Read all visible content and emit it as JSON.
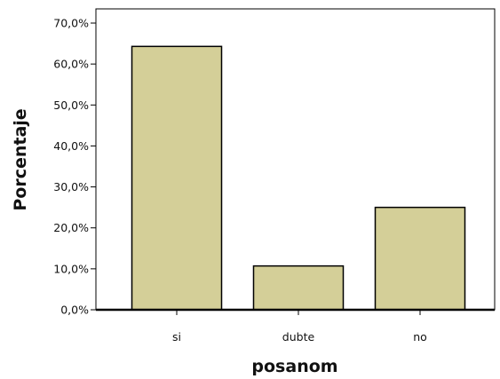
{
  "chart_data": {
    "type": "bar",
    "categories": [
      "si",
      "dubte",
      "no"
    ],
    "values": [
      64.3,
      10.7,
      25.0
    ],
    "xlabel": "posanom",
    "ylabel": "Porcentaje",
    "ylim": [
      0,
      70
    ],
    "yticks": [
      0,
      10,
      20,
      30,
      40,
      50,
      60,
      70
    ],
    "ytick_labels": [
      "0,0%",
      "10,0%",
      "20,0%",
      "30,0%",
      "40,0%",
      "50,0%",
      "60,0%",
      "70,0%"
    ],
    "bar_color": "#d4cf98",
    "bar_edge_color": "#000000",
    "grid": false,
    "legend": "none"
  }
}
